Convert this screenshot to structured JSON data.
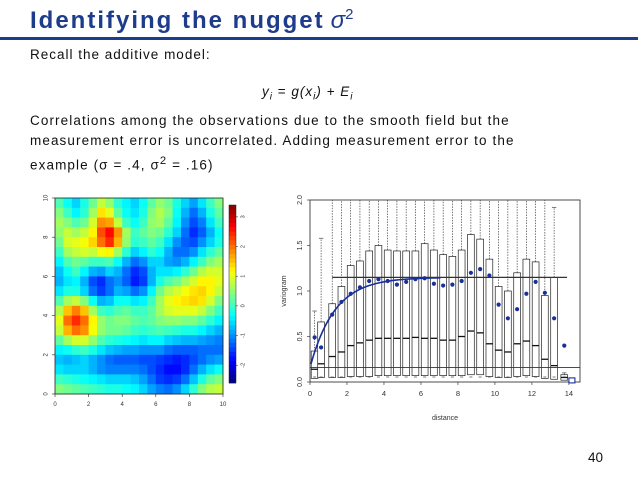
{
  "slide": {
    "title": "Identifying the nugget",
    "title_symbol": "σ",
    "title_sup": "2",
    "recall": "Recall the additive model:",
    "eq_lhs": "y",
    "eq_lhs_sub": "i",
    "eq_eq": " = ",
    "eq_g": "g",
    "eq_x": "(x",
    "eq_x_sub": "i",
    "eq_close_plus": ") + ",
    "eq_E": "E",
    "eq_E_sub": "i",
    "para_line1": "Correlations among the observations due to the smooth field but the",
    "para_line2": "measurement error is uncorrelated. Adding measurement error to the",
    "para_line3a": "example (σ = .4, σ",
    "para_line3_sup": "2",
    "para_line3b": " = .16)",
    "page_number": "40"
  },
  "colors": {
    "title": "#1e3c8c",
    "points": "#1a2f9a",
    "fit_line": "#1a2f9a"
  },
  "heatmap": {
    "x_ticks": [
      "0",
      "2",
      "4",
      "6",
      "8",
      "10"
    ],
    "y_ticks": [
      "0",
      "2",
      "4",
      "6",
      "8",
      "10"
    ],
    "colorbar_ticks": [
      "3",
      "2",
      "1",
      "0",
      "-1",
      "-2"
    ],
    "cells": [
      [
        0.1,
        -0.3,
        -0.6,
        -0.2,
        0.3,
        0.8,
        0.5,
        -0.1,
        -0.4,
        -0.6,
        -0.3,
        0.2,
        0.5,
        0.3,
        -0.2,
        -0.6,
        -0.9,
        -0.5,
        0.0,
        0.4
      ],
      [
        0.4,
        0.0,
        -0.4,
        -0.1,
        0.6,
        1.3,
        1.0,
        0.2,
        -0.3,
        -0.5,
        -0.2,
        0.4,
        0.7,
        0.4,
        -0.3,
        -0.8,
        -1.2,
        -0.8,
        -0.2,
        0.2
      ],
      [
        0.6,
        0.4,
        0.1,
        0.3,
        0.9,
        1.8,
        1.7,
        0.8,
        0.0,
        -0.3,
        0.0,
        0.5,
        0.6,
        0.2,
        -0.4,
        -1.0,
        -1.4,
        -1.1,
        -0.5,
        0.0
      ],
      [
        0.5,
        0.8,
        0.6,
        0.8,
        1.2,
        2.2,
        2.6,
        1.8,
        0.6,
        0.0,
        0.2,
        0.4,
        0.3,
        -0.1,
        -0.6,
        -1.2,
        -1.6,
        -1.3,
        -0.8,
        -0.3
      ],
      [
        0.3,
        0.9,
        1.0,
        1.1,
        1.4,
        2.0,
        2.4,
        1.6,
        0.5,
        -0.1,
        0.0,
        0.2,
        0.0,
        -0.5,
        -1.0,
        -1.3,
        -1.4,
        -1.0,
        -0.6,
        -0.2
      ],
      [
        0.0,
        0.6,
        0.8,
        0.9,
        0.8,
        1.1,
        1.2,
        0.6,
        -0.1,
        -0.6,
        -0.4,
        -0.1,
        -0.3,
        -0.8,
        -1.2,
        -1.2,
        -1.0,
        -0.5,
        -0.1,
        0.2
      ],
      [
        -0.4,
        0.1,
        0.3,
        0.2,
        0.0,
        0.0,
        0.1,
        -0.3,
        -0.8,
        -1.2,
        -1.0,
        -0.6,
        -0.6,
        -0.9,
        -1.0,
        -0.8,
        -0.4,
        0.0,
        0.4,
        0.6
      ],
      [
        -0.7,
        -0.3,
        0.0,
        -0.4,
        -0.8,
        -0.9,
        -0.6,
        -0.8,
        -1.2,
        -1.6,
        -1.4,
        -0.8,
        -0.5,
        -0.5,
        -0.4,
        -0.1,
        0.3,
        0.7,
        0.9,
        0.9
      ],
      [
        -0.8,
        -0.5,
        -0.4,
        -0.8,
        -1.4,
        -1.6,
        -1.2,
        -1.0,
        -1.3,
        -1.7,
        -1.5,
        -0.8,
        -0.2,
        0.1,
        0.3,
        0.6,
        0.9,
        1.2,
        1.2,
        1.0
      ],
      [
        -0.5,
        -0.2,
        -0.2,
        -0.6,
        -1.2,
        -1.5,
        -1.2,
        -0.8,
        -0.9,
        -1.2,
        -1.0,
        -0.4,
        0.3,
        0.7,
        0.9,
        1.1,
        1.3,
        1.4,
        1.2,
        0.8
      ],
      [
        0.1,
        0.6,
        0.8,
        0.4,
        -0.3,
        -0.8,
        -0.7,
        -0.3,
        -0.3,
        -0.5,
        -0.4,
        0.0,
        0.6,
        1.0,
        1.2,
        1.3,
        1.4,
        1.3,
        0.9,
        0.4
      ],
      [
        0.7,
        1.5,
        1.9,
        1.5,
        0.6,
        0.0,
        -0.1,
        0.1,
        0.2,
        0.0,
        0.0,
        0.2,
        0.6,
        0.9,
        1.0,
        1.0,
        1.0,
        0.8,
        0.4,
        0.0
      ],
      [
        1.0,
        2.0,
        2.4,
        2.0,
        1.2,
        0.5,
        0.3,
        0.4,
        0.4,
        0.2,
        0.1,
        0.2,
        0.4,
        0.5,
        0.5,
        0.4,
        0.4,
        0.2,
        -0.1,
        -0.4
      ],
      [
        0.8,
        1.6,
        2.0,
        1.8,
        1.1,
        0.5,
        0.3,
        0.3,
        0.2,
        0.0,
        -0.1,
        0.0,
        0.1,
        0.0,
        -0.1,
        -0.2,
        -0.2,
        -0.4,
        -0.6,
        -0.8
      ],
      [
        0.2,
        0.6,
        0.9,
        0.9,
        0.5,
        0.1,
        -0.1,
        -0.2,
        -0.3,
        -0.4,
        -0.5,
        -0.4,
        -0.4,
        -0.6,
        -0.7,
        -0.8,
        -0.8,
        -0.9,
        -1.0,
        -1.1
      ],
      [
        -0.4,
        -0.3,
        -0.1,
        0.0,
        -0.2,
        -0.5,
        -0.7,
        -0.8,
        -0.9,
        -0.9,
        -1.0,
        -1.0,
        -1.0,
        -1.2,
        -1.3,
        -1.3,
        -1.3,
        -1.2,
        -1.2,
        -1.2
      ],
      [
        -0.7,
        -0.8,
        -0.7,
        -0.6,
        -0.8,
        -1.0,
        -1.2,
        -1.3,
        -1.3,
        -1.3,
        -1.4,
        -1.4,
        -1.5,
        -1.6,
        -1.7,
        -1.6,
        -1.4,
        -1.2,
        -1.0,
        -0.9
      ],
      [
        -0.5,
        -0.6,
        -0.6,
        -0.6,
        -0.8,
        -1.0,
        -1.1,
        -1.1,
        -1.1,
        -1.1,
        -1.2,
        -1.4,
        -1.6,
        -1.8,
        -1.8,
        -1.6,
        -1.2,
        -0.8,
        -0.5,
        -0.3
      ],
      [
        0.0,
        -0.1,
        -0.2,
        -0.3,
        -0.4,
        -0.5,
        -0.6,
        -0.6,
        -0.6,
        -0.7,
        -0.9,
        -1.2,
        -1.5,
        -1.6,
        -1.5,
        -1.2,
        -0.7,
        -0.2,
        0.2,
        0.4
      ],
      [
        0.4,
        0.3,
        0.2,
        0.1,
        0.0,
        -0.1,
        -0.2,
        -0.2,
        -0.3,
        -0.4,
        -0.6,
        -0.9,
        -1.1,
        -1.2,
        -1.0,
        -0.6,
        -0.1,
        0.4,
        0.7,
        0.8
      ]
    ]
  },
  "chart_data": {
    "type": "box",
    "xlabel": "distance",
    "ylabel": "variogram",
    "xlim": [
      0,
      14.6
    ],
    "ylim": [
      0,
      2.0
    ],
    "x_ticks": [
      "0",
      "2",
      "4",
      "6",
      "8",
      "10",
      "12",
      "14"
    ],
    "y_ticks": [
      "0.0",
      "0.5",
      "1.0",
      "1.5",
      "2.0"
    ],
    "boxes": [
      {
        "x": 0.25,
        "q1": 0.04,
        "med": 0.14,
        "q3": 0.34,
        "whisker_hi": 0.78
      },
      {
        "x": 0.6,
        "q1": 0.05,
        "med": 0.2,
        "q3": 0.66,
        "whisker_hi": 1.58
      },
      {
        "x": 1.2,
        "q1": 0.05,
        "med": 0.28,
        "q3": 0.86,
        "whisker_hi": 2.0
      },
      {
        "x": 1.7,
        "q1": 0.05,
        "med": 0.33,
        "q3": 1.05,
        "whisker_hi": 2.0
      },
      {
        "x": 2.2,
        "q1": 0.06,
        "med": 0.4,
        "q3": 1.28,
        "whisker_hi": 2.0
      },
      {
        "x": 2.7,
        "q1": 0.06,
        "med": 0.43,
        "q3": 1.33,
        "whisker_hi": 2.0
      },
      {
        "x": 3.2,
        "q1": 0.06,
        "med": 0.46,
        "q3": 1.44,
        "whisker_hi": 2.0
      },
      {
        "x": 3.7,
        "q1": 0.07,
        "med": 0.48,
        "q3": 1.5,
        "whisker_hi": 2.0
      },
      {
        "x": 4.2,
        "q1": 0.07,
        "med": 0.48,
        "q3": 1.45,
        "whisker_hi": 2.0
      },
      {
        "x": 4.7,
        "q1": 0.07,
        "med": 0.48,
        "q3": 1.44,
        "whisker_hi": 2.0
      },
      {
        "x": 5.2,
        "q1": 0.07,
        "med": 0.48,
        "q3": 1.44,
        "whisker_hi": 2.0
      },
      {
        "x": 5.7,
        "q1": 0.07,
        "med": 0.49,
        "q3": 1.44,
        "whisker_hi": 2.0
      },
      {
        "x": 6.2,
        "q1": 0.07,
        "med": 0.48,
        "q3": 1.52,
        "whisker_hi": 2.0
      },
      {
        "x": 6.7,
        "q1": 0.07,
        "med": 0.48,
        "q3": 1.45,
        "whisker_hi": 2.0
      },
      {
        "x": 7.2,
        "q1": 0.07,
        "med": 0.46,
        "q3": 1.4,
        "whisker_hi": 2.0
      },
      {
        "x": 7.7,
        "q1": 0.07,
        "med": 0.46,
        "q3": 1.38,
        "whisker_hi": 2.0
      },
      {
        "x": 8.2,
        "q1": 0.07,
        "med": 0.5,
        "q3": 1.45,
        "whisker_hi": 2.0
      },
      {
        "x": 8.7,
        "q1": 0.08,
        "med": 0.56,
        "q3": 1.62,
        "whisker_hi": 2.0
      },
      {
        "x": 9.2,
        "q1": 0.08,
        "med": 0.54,
        "q3": 1.57,
        "whisker_hi": 2.0
      },
      {
        "x": 9.7,
        "q1": 0.06,
        "med": 0.42,
        "q3": 1.35,
        "whisker_hi": 2.0
      },
      {
        "x": 10.2,
        "q1": 0.05,
        "med": 0.35,
        "q3": 1.05,
        "whisker_hi": 2.0
      },
      {
        "x": 10.7,
        "q1": 0.05,
        "med": 0.33,
        "q3": 1.0,
        "whisker_hi": 2.0
      },
      {
        "x": 11.2,
        "q1": 0.06,
        "med": 0.42,
        "q3": 1.2,
        "whisker_hi": 2.0
      },
      {
        "x": 11.7,
        "q1": 0.07,
        "med": 0.45,
        "q3": 1.35,
        "whisker_hi": 2.0
      },
      {
        "x": 12.2,
        "q1": 0.06,
        "med": 0.4,
        "q3": 1.32,
        "whisker_hi": 2.0
      },
      {
        "x": 12.7,
        "q1": 0.04,
        "med": 0.25,
        "q3": 0.95,
        "whisker_hi": 2.0
      },
      {
        "x": 13.2,
        "q1": 0.03,
        "med": 0.18,
        "q3": 1.15,
        "whisker_hi": 1.92
      },
      {
        "x": 13.75,
        "q1": 0.02,
        "med": 0.05,
        "q3": 0.08,
        "whisker_hi": 0.1
      }
    ],
    "means": [
      {
        "x": 0.25,
        "y": 0.49
      },
      {
        "x": 0.6,
        "y": 0.38
      },
      {
        "x": 1.2,
        "y": 0.74
      },
      {
        "x": 1.7,
        "y": 0.88
      },
      {
        "x": 2.2,
        "y": 0.97
      },
      {
        "x": 2.7,
        "y": 1.04
      },
      {
        "x": 3.2,
        "y": 1.11
      },
      {
        "x": 3.7,
        "y": 1.13
      },
      {
        "x": 4.2,
        "y": 1.11
      },
      {
        "x": 4.7,
        "y": 1.07
      },
      {
        "x": 5.2,
        "y": 1.1
      },
      {
        "x": 5.7,
        "y": 1.13
      },
      {
        "x": 6.2,
        "y": 1.14
      },
      {
        "x": 6.7,
        "y": 1.08
      },
      {
        "x": 7.2,
        "y": 1.06
      },
      {
        "x": 7.7,
        "y": 1.07
      },
      {
        "x": 8.2,
        "y": 1.11
      },
      {
        "x": 8.7,
        "y": 1.2
      },
      {
        "x": 9.2,
        "y": 1.24
      },
      {
        "x": 9.7,
        "y": 1.17
      },
      {
        "x": 10.2,
        "y": 0.85
      },
      {
        "x": 10.7,
        "y": 0.7
      },
      {
        "x": 11.2,
        "y": 0.8
      },
      {
        "x": 11.7,
        "y": 0.97
      },
      {
        "x": 12.2,
        "y": 1.1
      },
      {
        "x": 12.7,
        "y": 0.98
      },
      {
        "x": 13.2,
        "y": 0.7
      },
      {
        "x": 13.75,
        "y": 0.4
      }
    ],
    "fit": {
      "nugget": 0.16,
      "sill": 1.15,
      "range": 2.0
    },
    "nugget_line": 0.16,
    "sill_line": 1.15
  }
}
